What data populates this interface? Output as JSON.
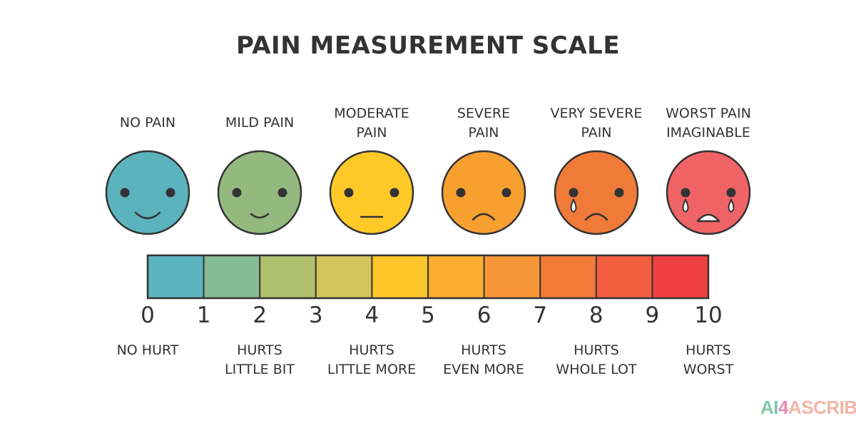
{
  "title": "PAIN MEASUREMENT SCALE",
  "faces": [
    {
      "label": "NO PAIN",
      "color": "#5bb3be",
      "expression": "smile"
    },
    {
      "label": "MILD PAIN",
      "color": "#93b97f",
      "expression": "small-smile"
    },
    {
      "label": "MODERATE\nPAIN",
      "color": "#ffca28",
      "expression": "neutral"
    },
    {
      "label": "SEVERE\nPAIN",
      "color": "#f7a030",
      "expression": "frown"
    },
    {
      "label": "VERY SEVERE\nPAIN",
      "color": "#f07a38",
      "expression": "frown-tear"
    },
    {
      "label": "WORST PAIN\nIMAGINABLE",
      "color": "#f06366",
      "expression": "cry"
    }
  ],
  "scale": {
    "numbers": [
      "0",
      "1",
      "2",
      "3",
      "4",
      "5",
      "6",
      "7",
      "8",
      "9",
      "10"
    ],
    "segment_colors": [
      "#5bb3be",
      "#87bb94",
      "#b0bf6e",
      "#d5c45a",
      "#fdc72c",
      "#fbad30",
      "#f79637",
      "#f27b3a",
      "#f25e3f",
      "#ee4040"
    ]
  },
  "descriptions": [
    "NO HURT",
    "HURTS\nLITTLE BIT",
    "HURTS\nLITTLE MORE",
    "HURTS\nEVEN MORE",
    "HURTS\nWHOLE LOT",
    "HURTS\nWORST"
  ],
  "brand": {
    "part1": "AI",
    "part2": "4",
    "part3": "ASCRIBE"
  }
}
